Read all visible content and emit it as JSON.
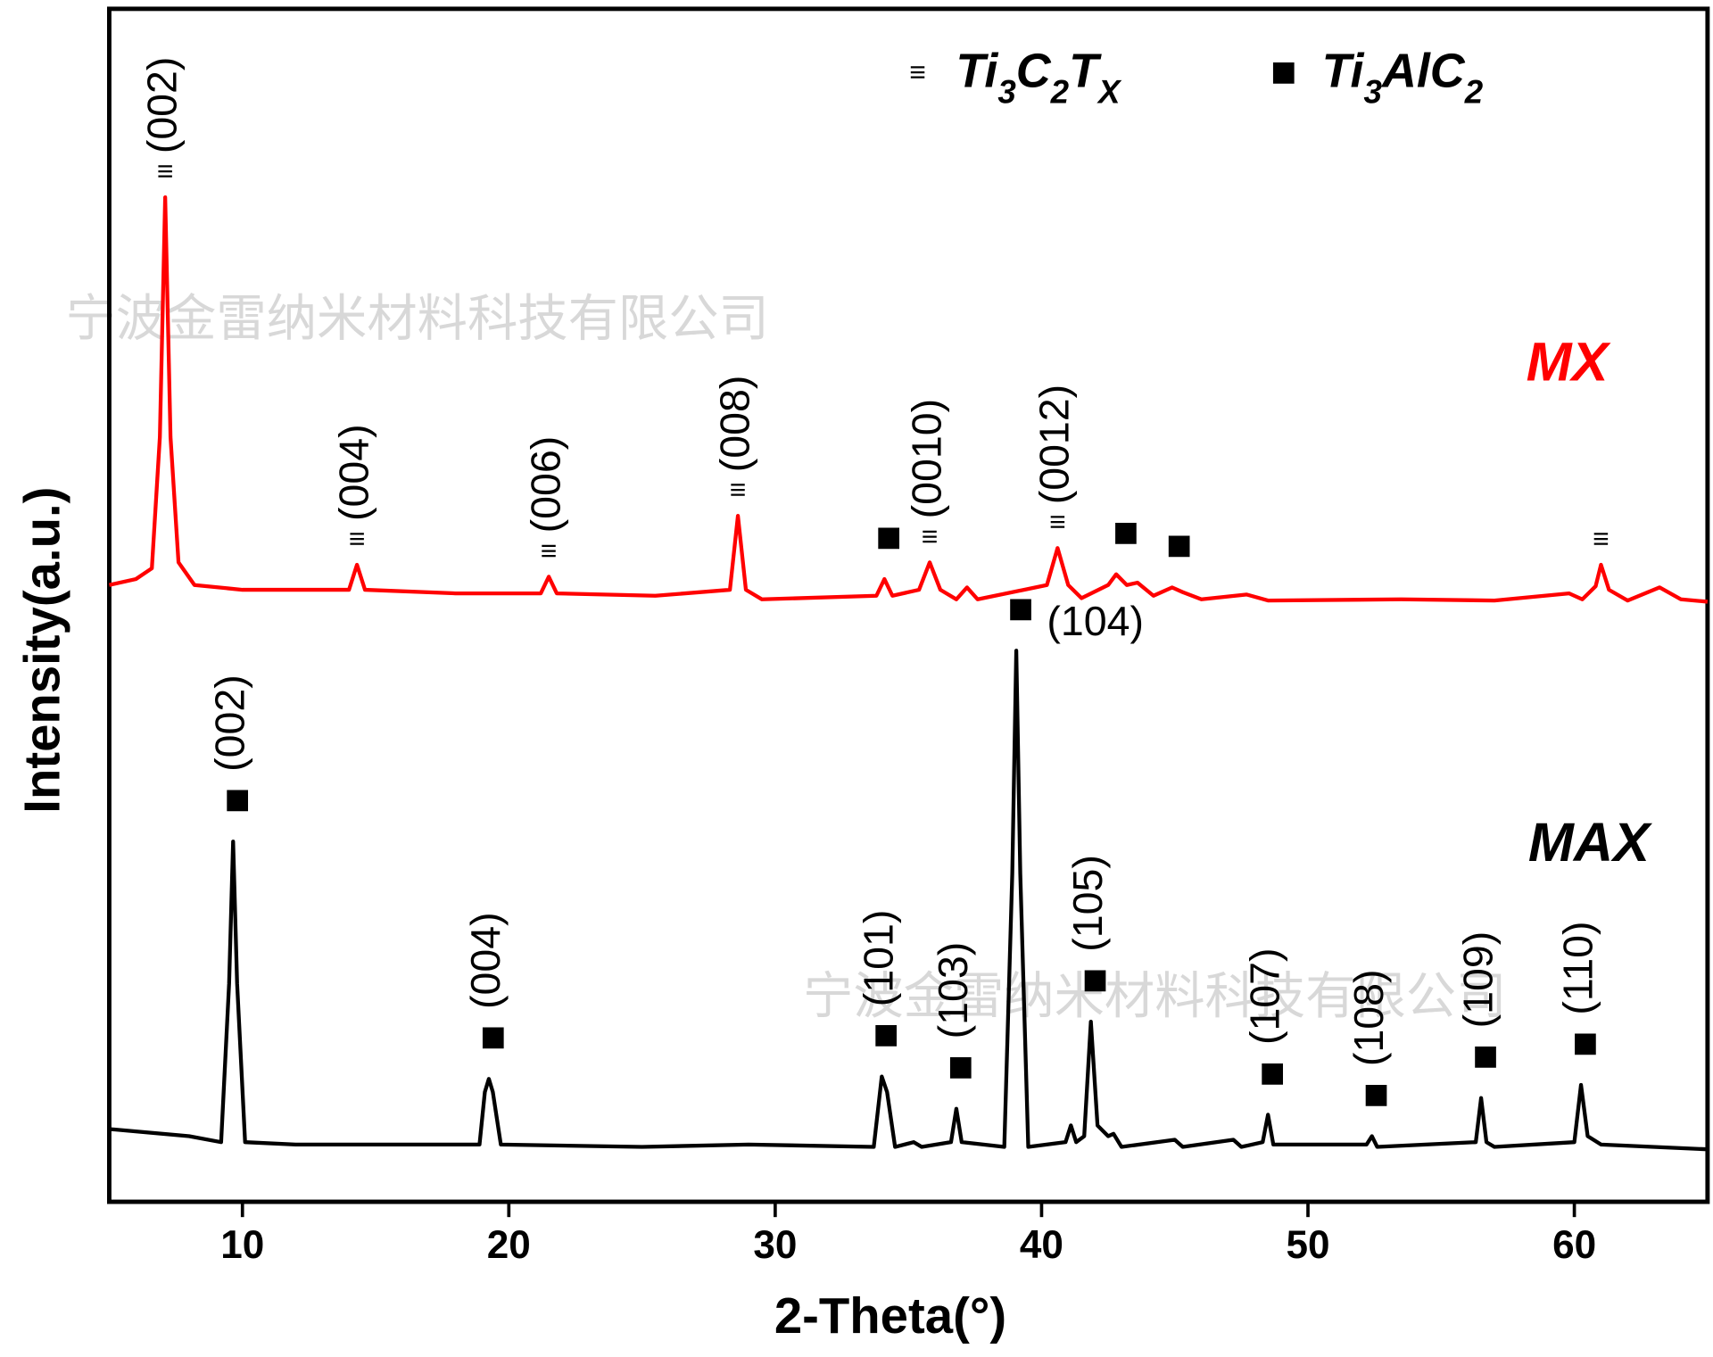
{
  "chart_data": {
    "type": "line",
    "x_label": "2-Theta(°)",
    "y_label": "Intensity(a.u.)",
    "xlim": [
      5,
      65
    ],
    "xticks": [
      10,
      20,
      30,
      40,
      50,
      60
    ],
    "ylim": [
      0,
      100
    ],
    "legend": [
      {
        "symbol": "≡",
        "label_parts": [
          "Ti",
          "3",
          "C",
          "2",
          "T",
          "X"
        ]
      },
      {
        "symbol": "■",
        "label_parts": [
          "Ti",
          "3",
          "AlC",
          "2"
        ]
      }
    ],
    "watermark": [
      "宁波金雷纳米材料科技有限公司",
      "宁波金雷纳米材料科技有限公司"
    ],
    "series": [
      {
        "name": "MX",
        "color": "#ff0000",
        "x": [
          5.0,
          6.0,
          6.6,
          6.9,
          7.1,
          7.3,
          7.6,
          8.2,
          10,
          14.0,
          14.3,
          14.6,
          18,
          21.2,
          21.5,
          21.8,
          25.5,
          28.3,
          28.6,
          28.9,
          29.5,
          33.8,
          34.1,
          34.4,
          35.4,
          35.8,
          36.2,
          36.8,
          37.2,
          37.6,
          40.2,
          40.6,
          41.0,
          41.5,
          42.5,
          42.8,
          43.2,
          43.6,
          44.2,
          44.9,
          45.3,
          46,
          47.7,
          48.5,
          53.5,
          57,
          59.8,
          60.3,
          60.8,
          61.0,
          61.3,
          62,
          63.2,
          64,
          65
        ],
        "values": [
          51.7,
          52.2,
          53.1,
          64.1,
          84.2,
          64.1,
          53.6,
          51.7,
          51.3,
          51.3,
          53.4,
          51.3,
          51.0,
          51.0,
          52.4,
          51.0,
          50.8,
          51.3,
          57.5,
          51.3,
          50.5,
          50.8,
          52.2,
          50.8,
          51.3,
          53.6,
          51.3,
          50.5,
          51.5,
          50.5,
          51.7,
          54.8,
          51.7,
          50.6,
          51.7,
          52.6,
          51.7,
          51.9,
          50.8,
          51.5,
          51.1,
          50.5,
          50.9,
          50.4,
          50.5,
          50.4,
          51.0,
          50.5,
          51.6,
          53.4,
          51.3,
          50.4,
          51.5,
          50.5,
          50.3
        ],
        "annotations": [
          {
            "x": 7.1,
            "marker": "≡",
            "label": "(002)"
          },
          {
            "x": 14.3,
            "marker": "≡",
            "label": "(004)"
          },
          {
            "x": 21.5,
            "marker": "≡",
            "label": "(006)"
          },
          {
            "x": 28.6,
            "marker": "≡",
            "label": "(008)"
          },
          {
            "x": 34.1,
            "marker": "■"
          },
          {
            "x": 35.8,
            "marker": "≡",
            "label": "(0010)"
          },
          {
            "x": 40.6,
            "marker": "≡",
            "label": "(0012)"
          },
          {
            "x": 43.0,
            "marker": "■"
          },
          {
            "x": 45.0,
            "marker": "■"
          },
          {
            "x": 61.0,
            "marker": "≡"
          }
        ]
      },
      {
        "name": "MAX",
        "color": "#000000",
        "x": [
          5,
          8,
          9.2,
          9.5,
          9.65,
          9.8,
          10.1,
          12,
          18.9,
          19.1,
          19.25,
          19.4,
          19.7,
          25,
          29,
          33.7,
          34.0,
          34.2,
          34.5,
          35.2,
          35.5,
          36.6,
          36.8,
          37.0,
          38.6,
          38.9,
          39.05,
          39.2,
          39.5,
          40.9,
          41.1,
          41.3,
          41.6,
          41.85,
          42.1,
          42.5,
          42.7,
          43,
          45,
          45.3,
          47.2,
          47.5,
          48.3,
          48.5,
          48.7,
          52.2,
          52.4,
          52.6,
          56.3,
          56.5,
          56.7,
          57,
          60,
          60.25,
          60.5,
          61,
          65
        ],
        "values": [
          6.1,
          5.5,
          5.0,
          18.3,
          30.2,
          18.3,
          5.0,
          4.8,
          4.8,
          9.2,
          10.3,
          9.2,
          4.8,
          4.6,
          4.8,
          4.6,
          10.5,
          9.2,
          4.6,
          5.0,
          4.6,
          5.0,
          7.8,
          5.0,
          4.6,
          27.5,
          46.2,
          27.5,
          4.6,
          5.0,
          6.4,
          5.0,
          5.5,
          15.1,
          6.4,
          5.5,
          5.7,
          4.6,
          5.2,
          4.6,
          5.2,
          4.6,
          5.0,
          7.3,
          4.8,
          4.8,
          5.5,
          4.6,
          5.0,
          8.7,
          5.0,
          4.6,
          5.0,
          9.8,
          5.5,
          4.8,
          4.4
        ],
        "annotations": [
          {
            "x": 9.65,
            "marker": "■",
            "label": "(002)"
          },
          {
            "x": 19.25,
            "marker": "■",
            "label": "(004)"
          },
          {
            "x": 34.0,
            "marker": "■",
            "label": "(101)"
          },
          {
            "x": 36.8,
            "marker": "■",
            "label": "(103)"
          },
          {
            "x": 39.05,
            "marker": "■",
            "label": "(104)",
            "orientation": "horizontal"
          },
          {
            "x": 41.85,
            "marker": "■",
            "label": "(105)"
          },
          {
            "x": 48.5,
            "marker": "■",
            "label": "(107)"
          },
          {
            "x": 52.4,
            "marker": "■",
            "label": "(108)"
          },
          {
            "x": 56.5,
            "marker": "■",
            "label": "(109)"
          },
          {
            "x": 60.25,
            "marker": "■",
            "label": "(110)"
          }
        ]
      }
    ]
  }
}
